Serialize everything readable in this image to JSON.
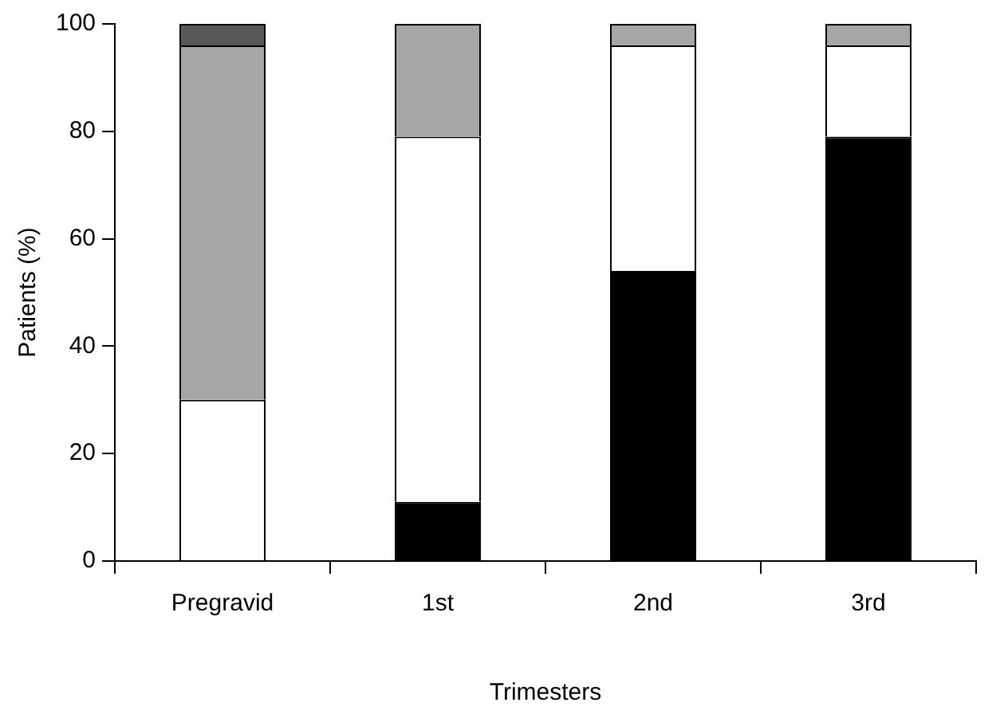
{
  "chart_data": {
    "type": "bar",
    "stacked": true,
    "xlabel": "Trimesters",
    "ylabel": "Patients (%)",
    "categories": [
      "Pregravid",
      "1st",
      "2nd",
      "3rd"
    ],
    "series": [
      {
        "color": "#000000",
        "values": [
          0,
          11,
          54,
          79
        ]
      },
      {
        "color": "#ffffff",
        "values": [
          30,
          68,
          42,
          17
        ]
      },
      {
        "color": "#a6a6a6",
        "values": [
          66,
          21,
          4,
          4
        ]
      },
      {
        "color": "#595959",
        "values": [
          4,
          0,
          0,
          0
        ]
      }
    ],
    "ylim": [
      0,
      100
    ],
    "yticks": [
      0,
      20,
      40,
      60,
      80,
      100
    ],
    "grid": false,
    "legend": false
  }
}
